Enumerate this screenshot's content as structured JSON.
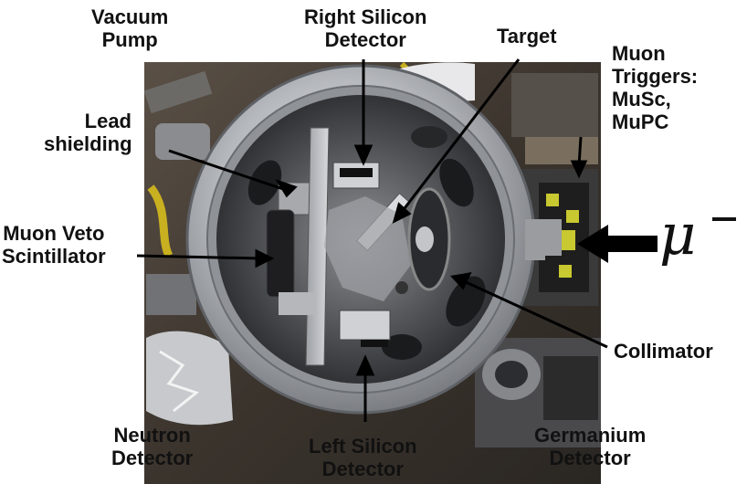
{
  "labels": {
    "vacuum_pump": [
      "Vacuum",
      "Pump"
    ],
    "right_silicon": [
      "Right Silicon",
      "Detector"
    ],
    "target": [
      "Target"
    ],
    "muon_triggers": [
      "Muon",
      "Triggers:",
      "MuSc,",
      "MuPC"
    ],
    "lead_shielding": [
      "Lead",
      "shielding"
    ],
    "muon_veto": [
      "Muon Veto",
      "Scintillator"
    ],
    "collimator": [
      "Collimator"
    ],
    "neutron_detector": [
      "Neutron",
      "Detector"
    ],
    "left_silicon": [
      "Left Silicon",
      "Detector"
    ],
    "germanium": [
      "Germanium",
      "Detector"
    ]
  },
  "beam_symbol": "μ",
  "colors": {
    "label_text": "#111111",
    "chamber_metal": "#b9bcc0",
    "chamber_dark": "#2c2d30",
    "background_equipment": "#4a4036",
    "glove": "#e8e8ea",
    "cable_yellow": "#c8b020",
    "tape_yellow": "#c8c830"
  }
}
